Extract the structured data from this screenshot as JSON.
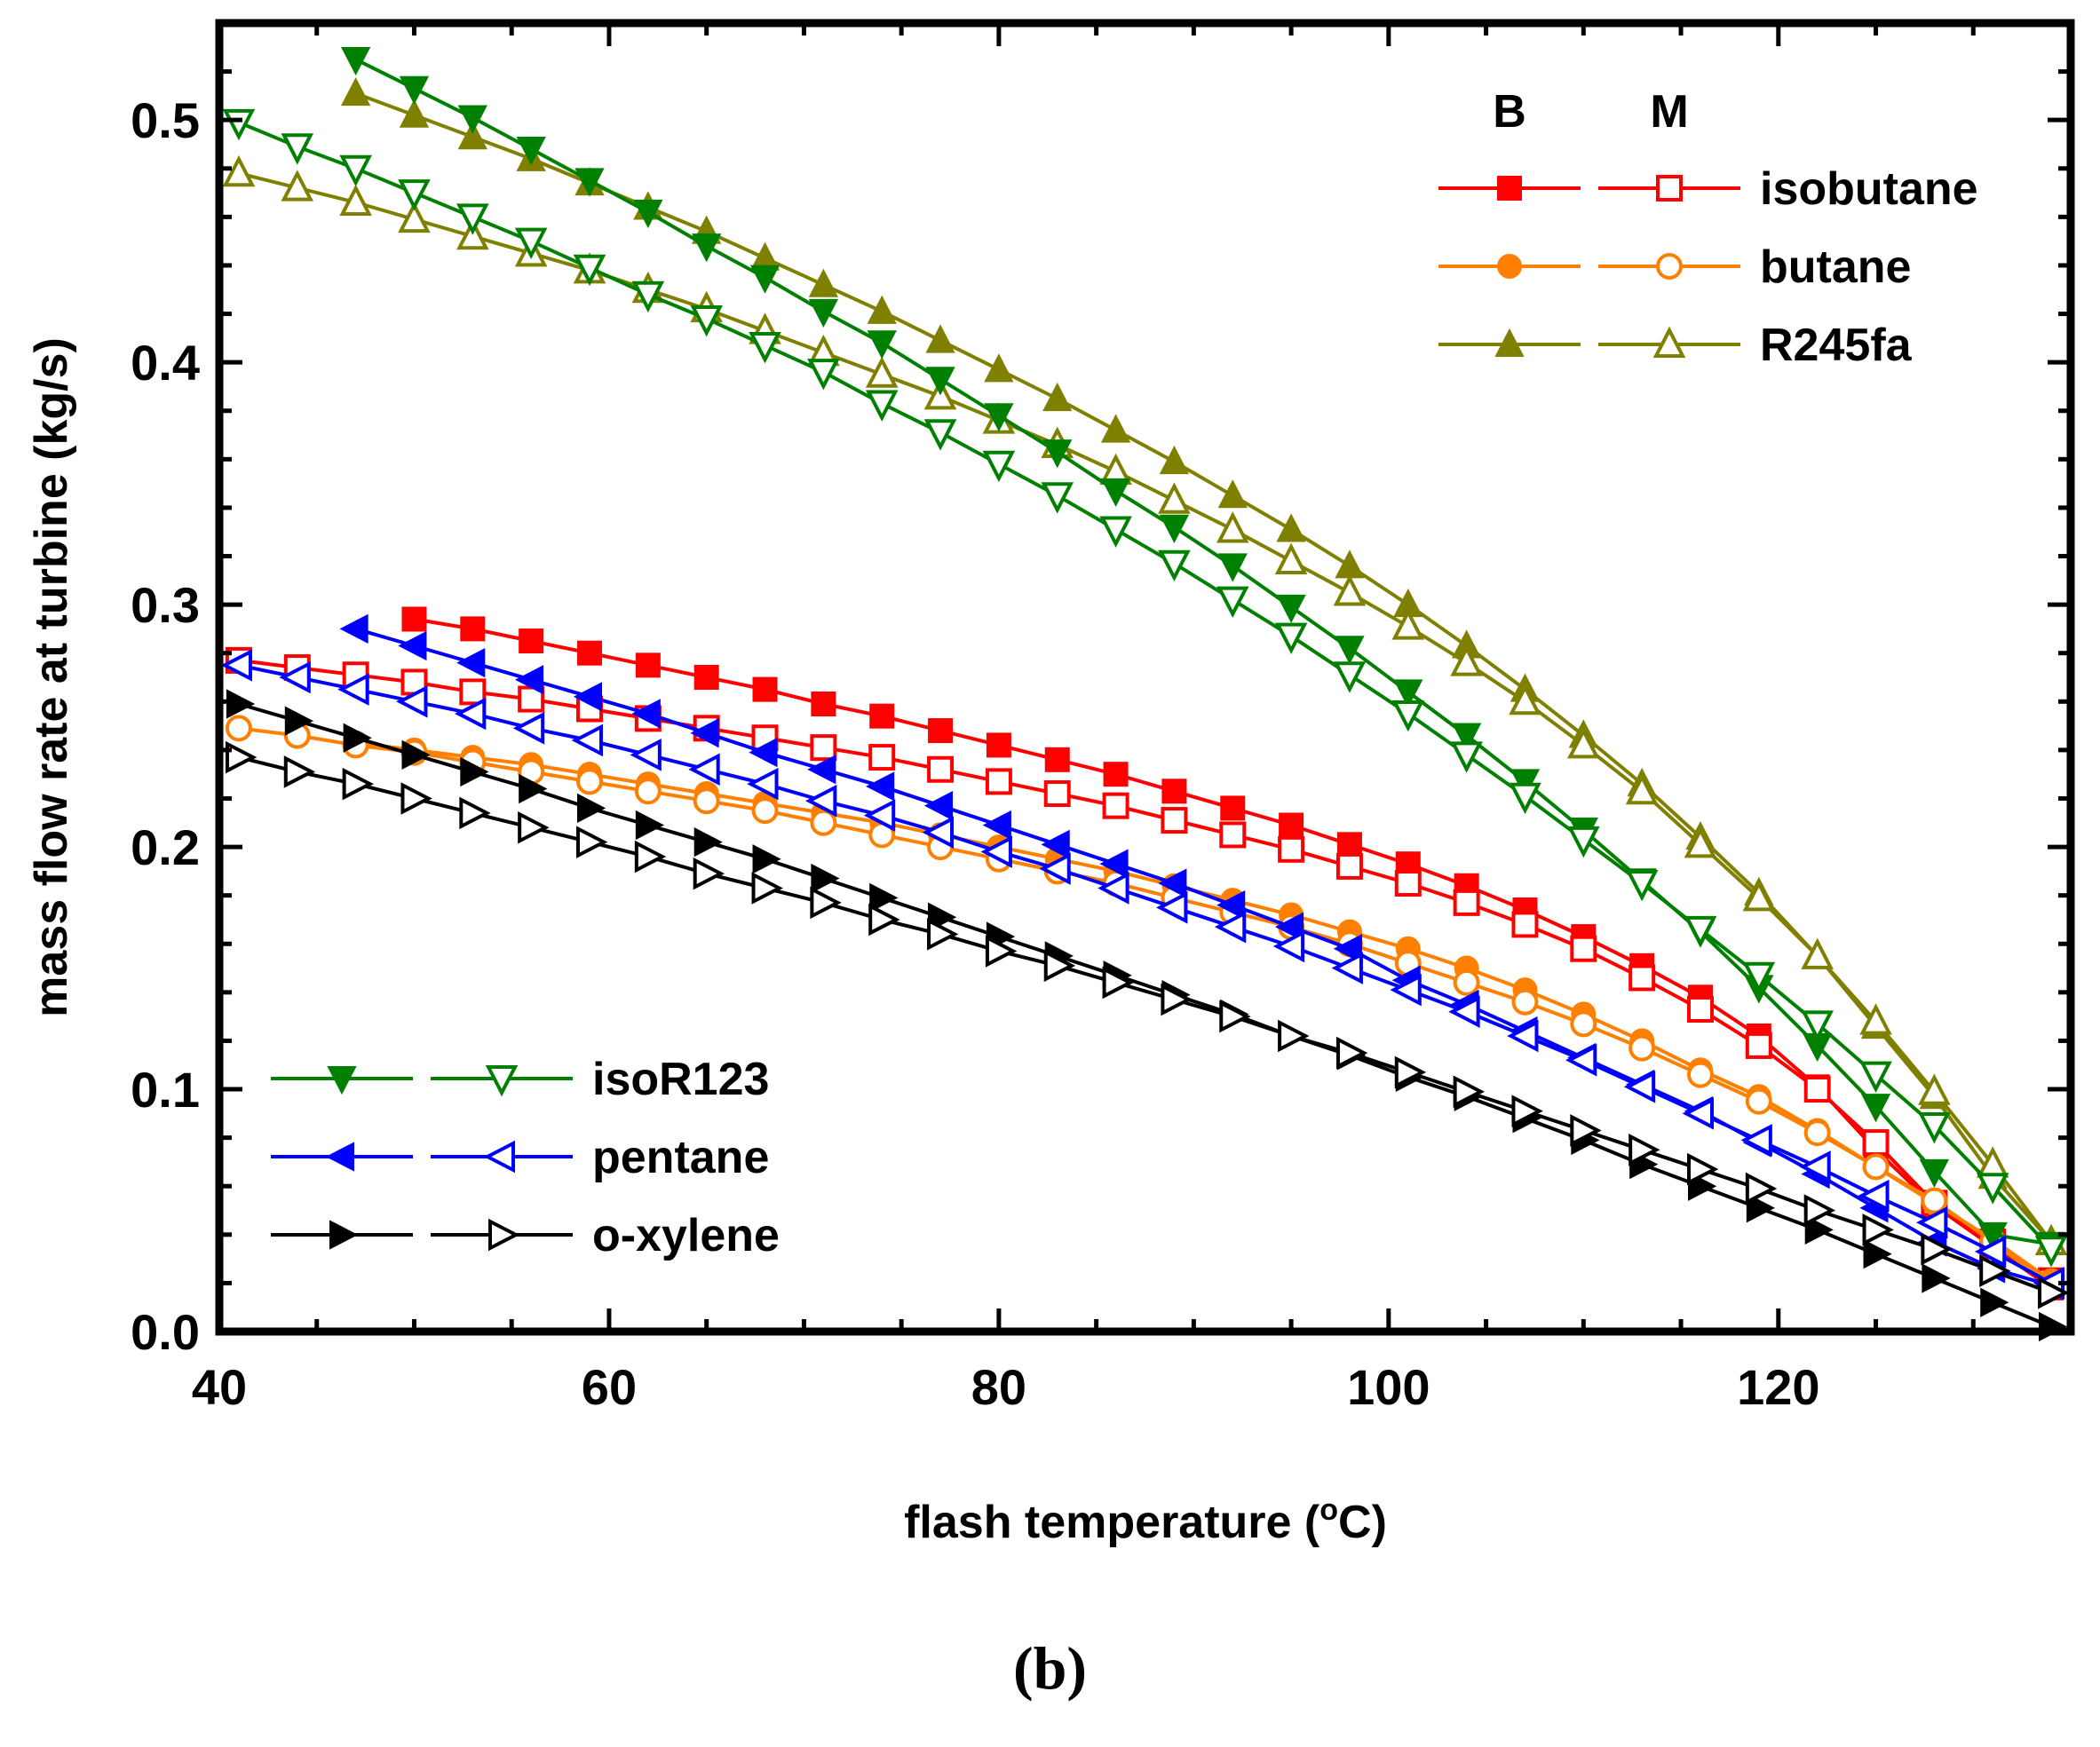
{
  "chart_data": {
    "type": "line",
    "title": "",
    "xlabel": "flash temperature",
    "xlabel_unit_sup": "o",
    "xlabel_unit": "C",
    "ylabel": "mass flow rate at turbine (kg/s)",
    "xlim": [
      40,
      135
    ],
    "ylim": [
      0.0,
      0.54
    ],
    "x_ticks": [
      "40",
      "60",
      "80",
      "100",
      "120"
    ],
    "y_ticks": [
      "0.0",
      "0.1",
      "0.2",
      "0.3",
      "0.4",
      "0.5"
    ],
    "legend_headers": {
      "basic": "B",
      "modified": "M"
    },
    "series": [
      {
        "name": "isobutane",
        "variant": "B",
        "color": "#ff0000",
        "marker": "square",
        "filled": true,
        "x": [
          50,
          53,
          56,
          59,
          62,
          65,
          68,
          71,
          74,
          77,
          80,
          83,
          86,
          89,
          92,
          95,
          98,
          101,
          104,
          107,
          110,
          113,
          116,
          119,
          122,
          125,
          128,
          131,
          134
        ],
        "y": [
          0.294,
          0.29,
          0.285,
          0.28,
          0.275,
          0.27,
          0.265,
          0.259,
          0.254,
          0.248,
          0.242,
          0.236,
          0.23,
          0.223,
          0.216,
          0.209,
          0.201,
          0.193,
          0.184,
          0.174,
          0.163,
          0.151,
          0.138,
          0.122,
          0.101,
          0.075,
          0.052,
          0.035,
          0.018
        ]
      },
      {
        "name": "isobutane",
        "variant": "M",
        "color": "#ff0000",
        "marker": "square",
        "filled": false,
        "x": [
          41,
          44,
          47,
          50,
          53,
          56,
          59,
          62,
          65,
          68,
          71,
          74,
          77,
          80,
          83,
          86,
          89,
          92,
          95,
          98,
          101,
          104,
          107,
          110,
          113,
          116,
          119,
          122,
          125,
          128,
          131,
          134
        ],
        "y": [
          0.277,
          0.274,
          0.271,
          0.268,
          0.264,
          0.261,
          0.257,
          0.253,
          0.249,
          0.245,
          0.241,
          0.237,
          0.232,
          0.227,
          0.222,
          0.217,
          0.211,
          0.205,
          0.199,
          0.192,
          0.185,
          0.177,
          0.168,
          0.158,
          0.146,
          0.133,
          0.118,
          0.1,
          0.078,
          0.053,
          0.037,
          0.021
        ]
      },
      {
        "name": "butane",
        "variant": "B",
        "color": "#ff8000",
        "marker": "circle",
        "filled": true,
        "x": [
          47,
          50,
          53,
          56,
          59,
          62,
          65,
          68,
          71,
          74,
          77,
          80,
          83,
          86,
          89,
          92,
          95,
          98,
          101,
          104,
          107,
          110,
          113,
          116,
          119,
          122,
          125,
          128,
          131,
          134
        ],
        "y": [
          0.243,
          0.24,
          0.237,
          0.234,
          0.23,
          0.226,
          0.222,
          0.218,
          0.214,
          0.21,
          0.205,
          0.2,
          0.195,
          0.19,
          0.184,
          0.178,
          0.172,
          0.165,
          0.158,
          0.15,
          0.141,
          0.131,
          0.12,
          0.108,
          0.097,
          0.083,
          0.068,
          0.053,
          0.038,
          0.021
        ]
      },
      {
        "name": "butane",
        "variant": "M",
        "color": "#ff8000",
        "marker": "circle",
        "filled": false,
        "x": [
          41,
          44,
          47,
          50,
          53,
          56,
          59,
          62,
          65,
          68,
          71,
          74,
          77,
          80,
          83,
          86,
          89,
          92,
          95,
          98,
          101,
          104,
          107,
          110,
          113,
          116,
          119,
          122,
          125,
          128,
          131,
          134
        ],
        "y": [
          0.249,
          0.246,
          0.242,
          0.239,
          0.235,
          0.231,
          0.227,
          0.223,
          0.219,
          0.215,
          0.21,
          0.205,
          0.2,
          0.195,
          0.19,
          0.185,
          0.179,
          0.173,
          0.167,
          0.16,
          0.152,
          0.144,
          0.136,
          0.127,
          0.117,
          0.106,
          0.095,
          0.082,
          0.068,
          0.054,
          0.037,
          0.019
        ]
      },
      {
        "name": "R245fa",
        "variant": "B",
        "color": "#808000",
        "marker": "triangle-up",
        "filled": true,
        "x": [
          47,
          50,
          53,
          56,
          59,
          62,
          65,
          68,
          71,
          74,
          77,
          80,
          83,
          86,
          89,
          92,
          95,
          98,
          101,
          104,
          107,
          110,
          113,
          116,
          119,
          122,
          125,
          128,
          131,
          134
        ],
        "y": [
          0.511,
          0.502,
          0.493,
          0.484,
          0.474,
          0.464,
          0.454,
          0.443,
          0.432,
          0.421,
          0.409,
          0.397,
          0.385,
          0.372,
          0.359,
          0.345,
          0.331,
          0.316,
          0.3,
          0.283,
          0.265,
          0.246,
          0.226,
          0.204,
          0.181,
          0.155,
          0.126,
          0.097,
          0.064,
          0.037
        ]
      },
      {
        "name": "R245fa",
        "variant": "M",
        "color": "#808000",
        "marker": "triangle-up",
        "filled": false,
        "x": [
          41,
          44,
          47,
          50,
          53,
          56,
          59,
          62,
          65,
          68,
          71,
          74,
          77,
          80,
          83,
          86,
          89,
          92,
          95,
          98,
          101,
          104,
          107,
          110,
          113,
          116,
          119,
          122,
          125,
          128,
          131,
          134
        ],
        "y": [
          0.478,
          0.472,
          0.466,
          0.459,
          0.452,
          0.445,
          0.438,
          0.43,
          0.422,
          0.413,
          0.404,
          0.395,
          0.386,
          0.376,
          0.366,
          0.355,
          0.343,
          0.331,
          0.318,
          0.305,
          0.291,
          0.276,
          0.26,
          0.242,
          0.223,
          0.201,
          0.179,
          0.155,
          0.128,
          0.099,
          0.069,
          0.037
        ]
      },
      {
        "name": "isoR123",
        "variant": "B",
        "color": "#008000",
        "marker": "triangle-down",
        "filled": true,
        "x": [
          47,
          50,
          53,
          56,
          59,
          62,
          65,
          68,
          71,
          74,
          77,
          80,
          83,
          86,
          89,
          92,
          95,
          98,
          101,
          104,
          107,
          110,
          113,
          116,
          119,
          122,
          125,
          128,
          131,
          134
        ],
        "y": [
          0.525,
          0.513,
          0.501,
          0.488,
          0.475,
          0.462,
          0.448,
          0.435,
          0.421,
          0.408,
          0.393,
          0.378,
          0.363,
          0.347,
          0.332,
          0.316,
          0.299,
          0.282,
          0.264,
          0.246,
          0.227,
          0.207,
          0.186,
          0.165,
          0.142,
          0.118,
          0.093,
          0.066,
          0.04,
          0.036
        ]
      },
      {
        "name": "isoR123",
        "variant": "M",
        "color": "#008000",
        "marker": "triangle-down",
        "filled": false,
        "x": [
          41,
          44,
          47,
          50,
          53,
          56,
          59,
          62,
          65,
          68,
          71,
          74,
          77,
          80,
          83,
          86,
          89,
          92,
          95,
          98,
          101,
          104,
          107,
          110,
          113,
          116,
          119,
          122,
          125,
          128,
          131,
          134
        ],
        "y": [
          0.499,
          0.489,
          0.48,
          0.47,
          0.46,
          0.45,
          0.439,
          0.428,
          0.418,
          0.407,
          0.396,
          0.383,
          0.371,
          0.358,
          0.345,
          0.331,
          0.317,
          0.302,
          0.287,
          0.271,
          0.255,
          0.238,
          0.221,
          0.203,
          0.185,
          0.166,
          0.147,
          0.127,
          0.106,
          0.085,
          0.06,
          0.034
        ]
      },
      {
        "name": "pentane",
        "variant": "B",
        "color": "#0000ff",
        "marker": "triangle-left",
        "filled": true,
        "x": [
          47,
          50,
          53,
          56,
          59,
          62,
          65,
          68,
          71,
          74,
          77,
          80,
          83,
          86,
          89,
          92,
          95,
          98,
          101,
          104,
          107,
          110,
          113,
          116,
          119,
          122,
          125,
          128,
          131,
          134
        ],
        "y": [
          0.29,
          0.283,
          0.276,
          0.269,
          0.262,
          0.255,
          0.247,
          0.239,
          0.232,
          0.225,
          0.217,
          0.209,
          0.201,
          0.193,
          0.185,
          0.176,
          0.167,
          0.158,
          0.145,
          0.135,
          0.124,
          0.113,
          0.102,
          0.091,
          0.078,
          0.065,
          0.051,
          0.037,
          0.026,
          0.019
        ]
      },
      {
        "name": "pentane",
        "variant": "M",
        "color": "#0000ff",
        "marker": "triangle-left",
        "filled": false,
        "x": [
          41,
          44,
          47,
          50,
          53,
          56,
          59,
          62,
          65,
          68,
          71,
          74,
          77,
          80,
          83,
          86,
          89,
          92,
          95,
          98,
          101,
          104,
          107,
          110,
          113,
          116,
          119,
          122,
          125,
          128,
          131,
          134
        ],
        "y": [
          0.275,
          0.27,
          0.265,
          0.26,
          0.255,
          0.249,
          0.244,
          0.238,
          0.232,
          0.226,
          0.219,
          0.213,
          0.206,
          0.198,
          0.191,
          0.183,
          0.175,
          0.167,
          0.159,
          0.15,
          0.141,
          0.132,
          0.122,
          0.112,
          0.101,
          0.09,
          0.079,
          0.068,
          0.056,
          0.045,
          0.033,
          0.02
        ]
      },
      {
        "name": "o-xylene",
        "variant": "B",
        "color": "#000000",
        "marker": "triangle-right",
        "filled": true,
        "x": [
          41,
          44,
          47,
          50,
          53,
          56,
          59,
          62,
          65,
          68,
          71,
          74,
          77,
          80,
          83,
          86,
          89,
          92,
          95,
          98,
          101,
          104,
          107,
          110,
          113,
          116,
          119,
          122,
          125,
          128,
          131,
          134
        ],
        "y": [
          0.259,
          0.252,
          0.245,
          0.238,
          0.231,
          0.224,
          0.216,
          0.209,
          0.202,
          0.195,
          0.187,
          0.179,
          0.171,
          0.163,
          0.155,
          0.147,
          0.139,
          0.131,
          0.122,
          0.114,
          0.105,
          0.097,
          0.088,
          0.079,
          0.069,
          0.06,
          0.051,
          0.042,
          0.032,
          0.022,
          0.012,
          0.002
        ]
      },
      {
        "name": "o-xylene",
        "variant": "M",
        "color": "#000000",
        "marker": "triangle-right",
        "filled": false,
        "x": [
          41,
          44,
          47,
          50,
          53,
          56,
          59,
          62,
          65,
          68,
          71,
          74,
          77,
          80,
          83,
          86,
          89,
          92,
          95,
          98,
          101,
          104,
          107,
          110,
          113,
          116,
          119,
          122,
          125,
          128,
          131,
          134
        ],
        "y": [
          0.237,
          0.231,
          0.226,
          0.22,
          0.214,
          0.208,
          0.202,
          0.196,
          0.189,
          0.183,
          0.177,
          0.17,
          0.164,
          0.157,
          0.151,
          0.144,
          0.137,
          0.13,
          0.122,
          0.115,
          0.107,
          0.099,
          0.091,
          0.083,
          0.075,
          0.067,
          0.059,
          0.05,
          0.042,
          0.034,
          0.025,
          0.016
        ]
      }
    ],
    "legend": {
      "top_right": [
        "isobutane",
        "butane",
        "R245fa"
      ],
      "bottom_left": [
        "isoR123",
        "pentane",
        "o-xylene"
      ]
    }
  },
  "panel_label": "(b)"
}
